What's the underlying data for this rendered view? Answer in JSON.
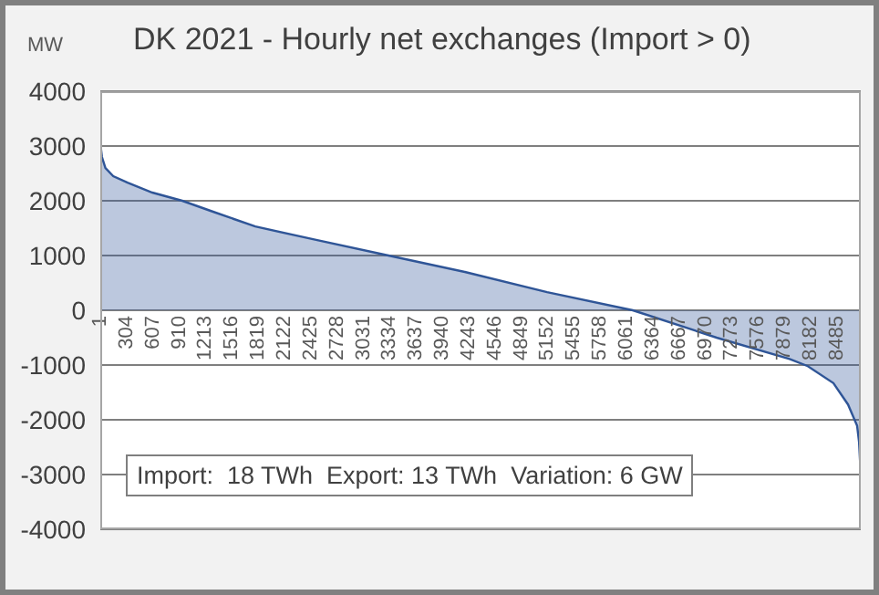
{
  "chart_data": {
    "type": "area",
    "title": "DK 2021 - Hourly net exchanges (Import > 0)",
    "ylabel": "MW",
    "x": [
      1,
      20,
      60,
      150,
      315,
      600,
      945,
      1300,
      1786,
      2500,
      3320,
      4200,
      5147,
      6134,
      7100,
      7940,
      8150,
      8445,
      8613,
      8718,
      8740,
      8760
    ],
    "series": [
      {
        "color": "#2f5597",
        "values": [
          3050,
          2800,
          2600,
          2450,
          2330,
          2150,
          2000,
          1800,
          1530,
          1280,
          1000,
          700,
          330,
          0,
          -500,
          -890,
          -1020,
          -1330,
          -1720,
          -2110,
          -2400,
          -3000
        ]
      }
    ],
    "xlim": [
      1,
      8760
    ],
    "xticks": [
      1,
      304,
      607,
      910,
      1213,
      1516,
      1819,
      2122,
      2425,
      2728,
      3031,
      3334,
      3637,
      3940,
      4243,
      4546,
      4849,
      5152,
      5455,
      5758,
      6061,
      6364,
      6667,
      6970,
      7273,
      7576,
      7879,
      8182,
      8485
    ],
    "ylim": [
      -4000,
      4000
    ],
    "yticks": [
      -4000,
      -3000,
      -2000,
      -1000,
      0,
      1000,
      2000,
      3000,
      4000
    ],
    "grid": "y",
    "legend": false,
    "annotations": [
      {
        "text": "Import:  18 TWh  Export: 13 TWh  Variation: 6 GW"
      }
    ]
  }
}
